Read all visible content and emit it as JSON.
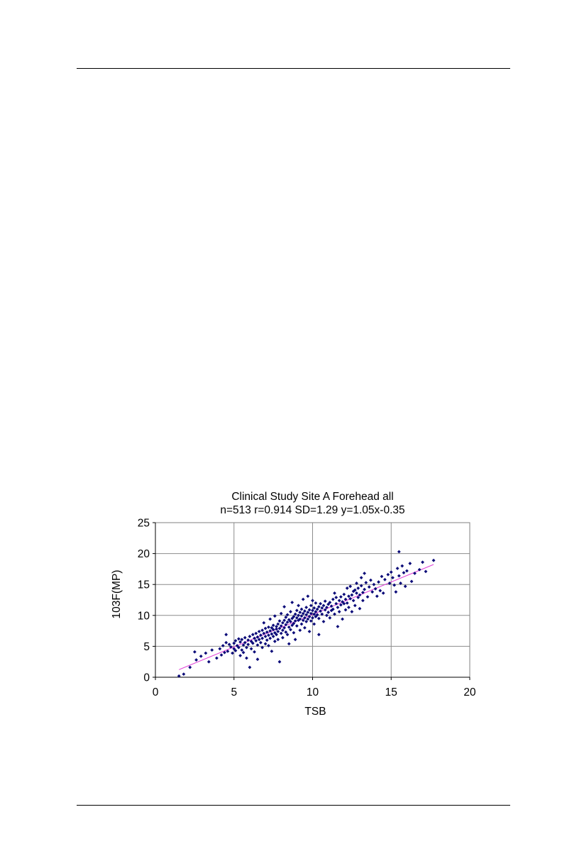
{
  "chart_data": {
    "type": "scatter",
    "title": "Clinical Study Site A Forehead  all",
    "subtitle": "n=513 r=0.914 SD=1.29 y=1.05x-0.35",
    "xlabel": "TSB",
    "ylabel": "103F(MP)",
    "xlim": [
      0,
      20
    ],
    "ylim": [
      0,
      25
    ],
    "xticks": [
      0,
      5,
      10,
      15,
      20
    ],
    "yticks": [
      0,
      5,
      10,
      15,
      20,
      25
    ],
    "grid": true,
    "legend": "none",
    "colors": {
      "points": "#0a0a78",
      "trendline": "#e040d8",
      "grid": "#8c8c8c",
      "frame": "#808080"
    },
    "trendline": {
      "slope": 1.05,
      "intercept": -0.35,
      "x_range": [
        1.5,
        17.7
      ]
    },
    "series": [
      {
        "values": [
          [
            1.5,
            0.2
          ],
          [
            1.8,
            0.5
          ],
          [
            2.2,
            1.6
          ],
          [
            2.5,
            4.1
          ],
          [
            2.6,
            2.8
          ],
          [
            2.9,
            3.4
          ],
          [
            3.2,
            3.9
          ],
          [
            3.4,
            2.5
          ],
          [
            3.6,
            4.4
          ],
          [
            3.9,
            3.1
          ],
          [
            4.1,
            4.6
          ],
          [
            4.2,
            3.6
          ],
          [
            4.3,
            5.1
          ],
          [
            4.4,
            4.0
          ],
          [
            4.5,
            5.6
          ],
          [
            4.5,
            6.9
          ],
          [
            4.6,
            4.2
          ],
          [
            4.7,
            5.3
          ],
          [
            4.8,
            4.9
          ],
          [
            4.9,
            3.9
          ],
          [
            5.0,
            5.5
          ],
          [
            5.0,
            4.6
          ],
          [
            5.1,
            5.9
          ],
          [
            5.1,
            4.3
          ],
          [
            5.2,
            5.1
          ],
          [
            5.3,
            4.8
          ],
          [
            5.3,
            6.2
          ],
          [
            5.4,
            3.5
          ],
          [
            5.4,
            5.7
          ],
          [
            5.5,
            4.4
          ],
          [
            5.5,
            6.1
          ],
          [
            5.6,
            5.2
          ],
          [
            5.6,
            4.0
          ],
          [
            5.7,
            6.4
          ],
          [
            5.7,
            5.6
          ],
          [
            5.8,
            4.8
          ],
          [
            5.8,
            3.1
          ],
          [
            5.9,
            6.0
          ],
          [
            5.9,
            5.3
          ],
          [
            6.0,
            6.6
          ],
          [
            6.0,
            1.6
          ],
          [
            6.1,
            5.8
          ],
          [
            6.1,
            4.6
          ],
          [
            6.2,
            6.9
          ],
          [
            6.2,
            5.5
          ],
          [
            6.3,
            6.3
          ],
          [
            6.3,
            4.1
          ],
          [
            6.4,
            7.1
          ],
          [
            6.4,
            5.9
          ],
          [
            6.5,
            6.5
          ],
          [
            6.5,
            5.2
          ],
          [
            6.5,
            2.9
          ],
          [
            6.6,
            7.4
          ],
          [
            6.6,
            6.1
          ],
          [
            6.7,
            6.8
          ],
          [
            6.7,
            5.6
          ],
          [
            6.8,
            7.6
          ],
          [
            6.8,
            4.8
          ],
          [
            6.8,
            6.3
          ],
          [
            6.9,
            7.1
          ],
          [
            6.9,
            8.8
          ],
          [
            7.0,
            6.6
          ],
          [
            7.0,
            5.4
          ],
          [
            7.0,
            7.9
          ],
          [
            7.1,
            7.3
          ],
          [
            7.1,
            6.0
          ],
          [
            7.2,
            8.1
          ],
          [
            7.2,
            6.8
          ],
          [
            7.2,
            5.1
          ],
          [
            7.3,
            7.5
          ],
          [
            7.3,
            9.4
          ],
          [
            7.3,
            6.3
          ],
          [
            7.4,
            8.0
          ],
          [
            7.4,
            7.0
          ],
          [
            7.4,
            4.2
          ],
          [
            7.5,
            8.4
          ],
          [
            7.5,
            6.6
          ],
          [
            7.5,
            7.7
          ],
          [
            7.6,
            9.9
          ],
          [
            7.6,
            7.2
          ],
          [
            7.6,
            5.8
          ],
          [
            7.7,
            8.2
          ],
          [
            7.7,
            6.9
          ],
          [
            7.7,
            7.8
          ],
          [
            7.8,
            8.6
          ],
          [
            7.8,
            7.4
          ],
          [
            7.8,
            6.1
          ],
          [
            7.9,
            9.1
          ],
          [
            7.9,
            7.9
          ],
          [
            7.9,
            2.5
          ],
          [
            8.0,
            8.3
          ],
          [
            8.0,
            7.1
          ],
          [
            8.0,
            10.3
          ],
          [
            8.1,
            8.8
          ],
          [
            8.1,
            7.6
          ],
          [
            8.1,
            6.4
          ],
          [
            8.2,
            9.2
          ],
          [
            8.2,
            8.0
          ],
          [
            8.2,
            11.4
          ],
          [
            8.3,
            8.5
          ],
          [
            8.3,
            7.3
          ],
          [
            8.3,
            9.7
          ],
          [
            8.4,
            8.9
          ],
          [
            8.4,
            6.9
          ],
          [
            8.4,
            10.1
          ],
          [
            8.5,
            9.3
          ],
          [
            8.5,
            8.1
          ],
          [
            8.5,
            5.4
          ],
          [
            8.6,
            9.0
          ],
          [
            8.6,
            10.6
          ],
          [
            8.6,
            7.7
          ],
          [
            8.7,
            9.5
          ],
          [
            8.7,
            8.4
          ],
          [
            8.7,
            12.1
          ],
          [
            8.8,
            9.8
          ],
          [
            8.8,
            8.7
          ],
          [
            8.8,
            7.2
          ],
          [
            8.9,
            10.2
          ],
          [
            8.9,
            9.1
          ],
          [
            8.9,
            6.1
          ],
          [
            9.0,
            9.6
          ],
          [
            9.0,
            10.8
          ],
          [
            9.0,
            8.3
          ],
          [
            9.1,
            10.0
          ],
          [
            9.1,
            9.2
          ],
          [
            9.1,
            11.6
          ],
          [
            9.2,
            9.4
          ],
          [
            9.2,
            10.5
          ],
          [
            9.2,
            7.6
          ],
          [
            9.3,
            9.9
          ],
          [
            9.3,
            11.0
          ],
          [
            9.3,
            8.6
          ],
          [
            9.4,
            10.3
          ],
          [
            9.4,
            9.2
          ],
          [
            9.4,
            12.6
          ],
          [
            9.5,
            10.7
          ],
          [
            9.5,
            9.6
          ],
          [
            9.5,
            8.0
          ],
          [
            9.6,
            10.1
          ],
          [
            9.6,
            11.3
          ],
          [
            9.6,
            9.0
          ],
          [
            9.7,
            10.5
          ],
          [
            9.7,
            9.4
          ],
          [
            9.7,
            13.1
          ],
          [
            9.8,
            10.9
          ],
          [
            9.8,
            9.8
          ],
          [
            9.8,
            7.4
          ],
          [
            9.9,
            10.3
          ],
          [
            9.9,
            11.6
          ],
          [
            9.9,
            9.1
          ],
          [
            10.0,
            10.8
          ],
          [
            10.0,
            9.6
          ],
          [
            10.0,
            12.4
          ],
          [
            10.1,
            10.2
          ],
          [
            10.1,
            11.2
          ],
          [
            10.1,
            8.6
          ],
          [
            10.2,
            10.6
          ],
          [
            10.2,
            9.8
          ],
          [
            10.2,
            12.0
          ],
          [
            10.3,
            11.0
          ],
          [
            10.3,
            10.1
          ],
          [
            10.4,
            11.4
          ],
          [
            10.4,
            9.5
          ],
          [
            10.4,
            6.9
          ],
          [
            10.5,
            10.7
          ],
          [
            10.5,
            11.9
          ],
          [
            10.6,
            11.2
          ],
          [
            10.6,
            10.2
          ],
          [
            10.7,
            11.6
          ],
          [
            10.7,
            9.0
          ],
          [
            10.8,
            10.9
          ],
          [
            10.8,
            12.3
          ],
          [
            10.9,
            11.3
          ],
          [
            10.9,
            10.0
          ],
          [
            11.0,
            11.8
          ],
          [
            11.0,
            10.5
          ],
          [
            11.1,
            12.1
          ],
          [
            11.1,
            9.6
          ],
          [
            11.2,
            11.5
          ],
          [
            11.2,
            10.8
          ],
          [
            11.3,
            12.6
          ],
          [
            11.3,
            11.0
          ],
          [
            11.4,
            13.6
          ],
          [
            11.4,
            10.2
          ],
          [
            11.5,
            11.9
          ],
          [
            11.5,
            12.9
          ],
          [
            11.6,
            11.3
          ],
          [
            11.6,
            8.2
          ],
          [
            11.7,
            12.4
          ],
          [
            11.7,
            10.6
          ],
          [
            11.8,
            13.0
          ],
          [
            11.8,
            11.7
          ],
          [
            11.9,
            12.2
          ],
          [
            11.9,
            9.4
          ],
          [
            12.0,
            13.4
          ],
          [
            12.0,
            11.9
          ],
          [
            12.1,
            12.6
          ],
          [
            12.1,
            10.9
          ],
          [
            12.2,
            14.4
          ],
          [
            12.2,
            12.0
          ],
          [
            12.3,
            13.1
          ],
          [
            12.3,
            11.3
          ],
          [
            12.4,
            12.7
          ],
          [
            12.4,
            14.7
          ],
          [
            12.5,
            13.3
          ],
          [
            12.5,
            10.6
          ],
          [
            12.6,
            13.9
          ],
          [
            12.6,
            12.4
          ],
          [
            12.7,
            14.1
          ],
          [
            12.7,
            11.6
          ],
          [
            12.8,
            13.6
          ],
          [
            12.8,
            15.2
          ],
          [
            12.9,
            12.9
          ],
          [
            12.9,
            14.4
          ],
          [
            13.0,
            13.3
          ],
          [
            13.0,
            11.1
          ],
          [
            13.1,
            14.8
          ],
          [
            13.1,
            16.1
          ],
          [
            13.2,
            13.7
          ],
          [
            13.2,
            12.4
          ],
          [
            13.3,
            16.8
          ],
          [
            13.3,
            14.2
          ],
          [
            13.4,
            15.3
          ],
          [
            13.5,
            13.0
          ],
          [
            13.6,
            14.6
          ],
          [
            13.7,
            15.7
          ],
          [
            13.8,
            13.8
          ],
          [
            13.9,
            15.0
          ],
          [
            14.0,
            14.3
          ],
          [
            14.1,
            13.1
          ],
          [
            14.2,
            15.4
          ],
          [
            14.3,
            14.0
          ],
          [
            14.4,
            16.3
          ],
          [
            14.5,
            13.6
          ],
          [
            14.6,
            15.8
          ],
          [
            14.8,
            16.6
          ],
          [
            14.9,
            15.2
          ],
          [
            15.0,
            17.0
          ],
          [
            15.1,
            16.1
          ],
          [
            15.2,
            14.9
          ],
          [
            15.3,
            13.8
          ],
          [
            15.4,
            17.6
          ],
          [
            15.5,
            20.3
          ],
          [
            15.5,
            16.4
          ],
          [
            15.6,
            15.2
          ],
          [
            15.7,
            18.0
          ],
          [
            15.8,
            16.9
          ],
          [
            15.9,
            14.7
          ],
          [
            16.0,
            17.2
          ],
          [
            16.2,
            18.4
          ],
          [
            16.3,
            15.5
          ],
          [
            16.5,
            16.8
          ],
          [
            16.8,
            17.4
          ],
          [
            17.0,
            18.6
          ],
          [
            17.2,
            17.1
          ],
          [
            17.7,
            18.9
          ]
        ]
      }
    ]
  }
}
